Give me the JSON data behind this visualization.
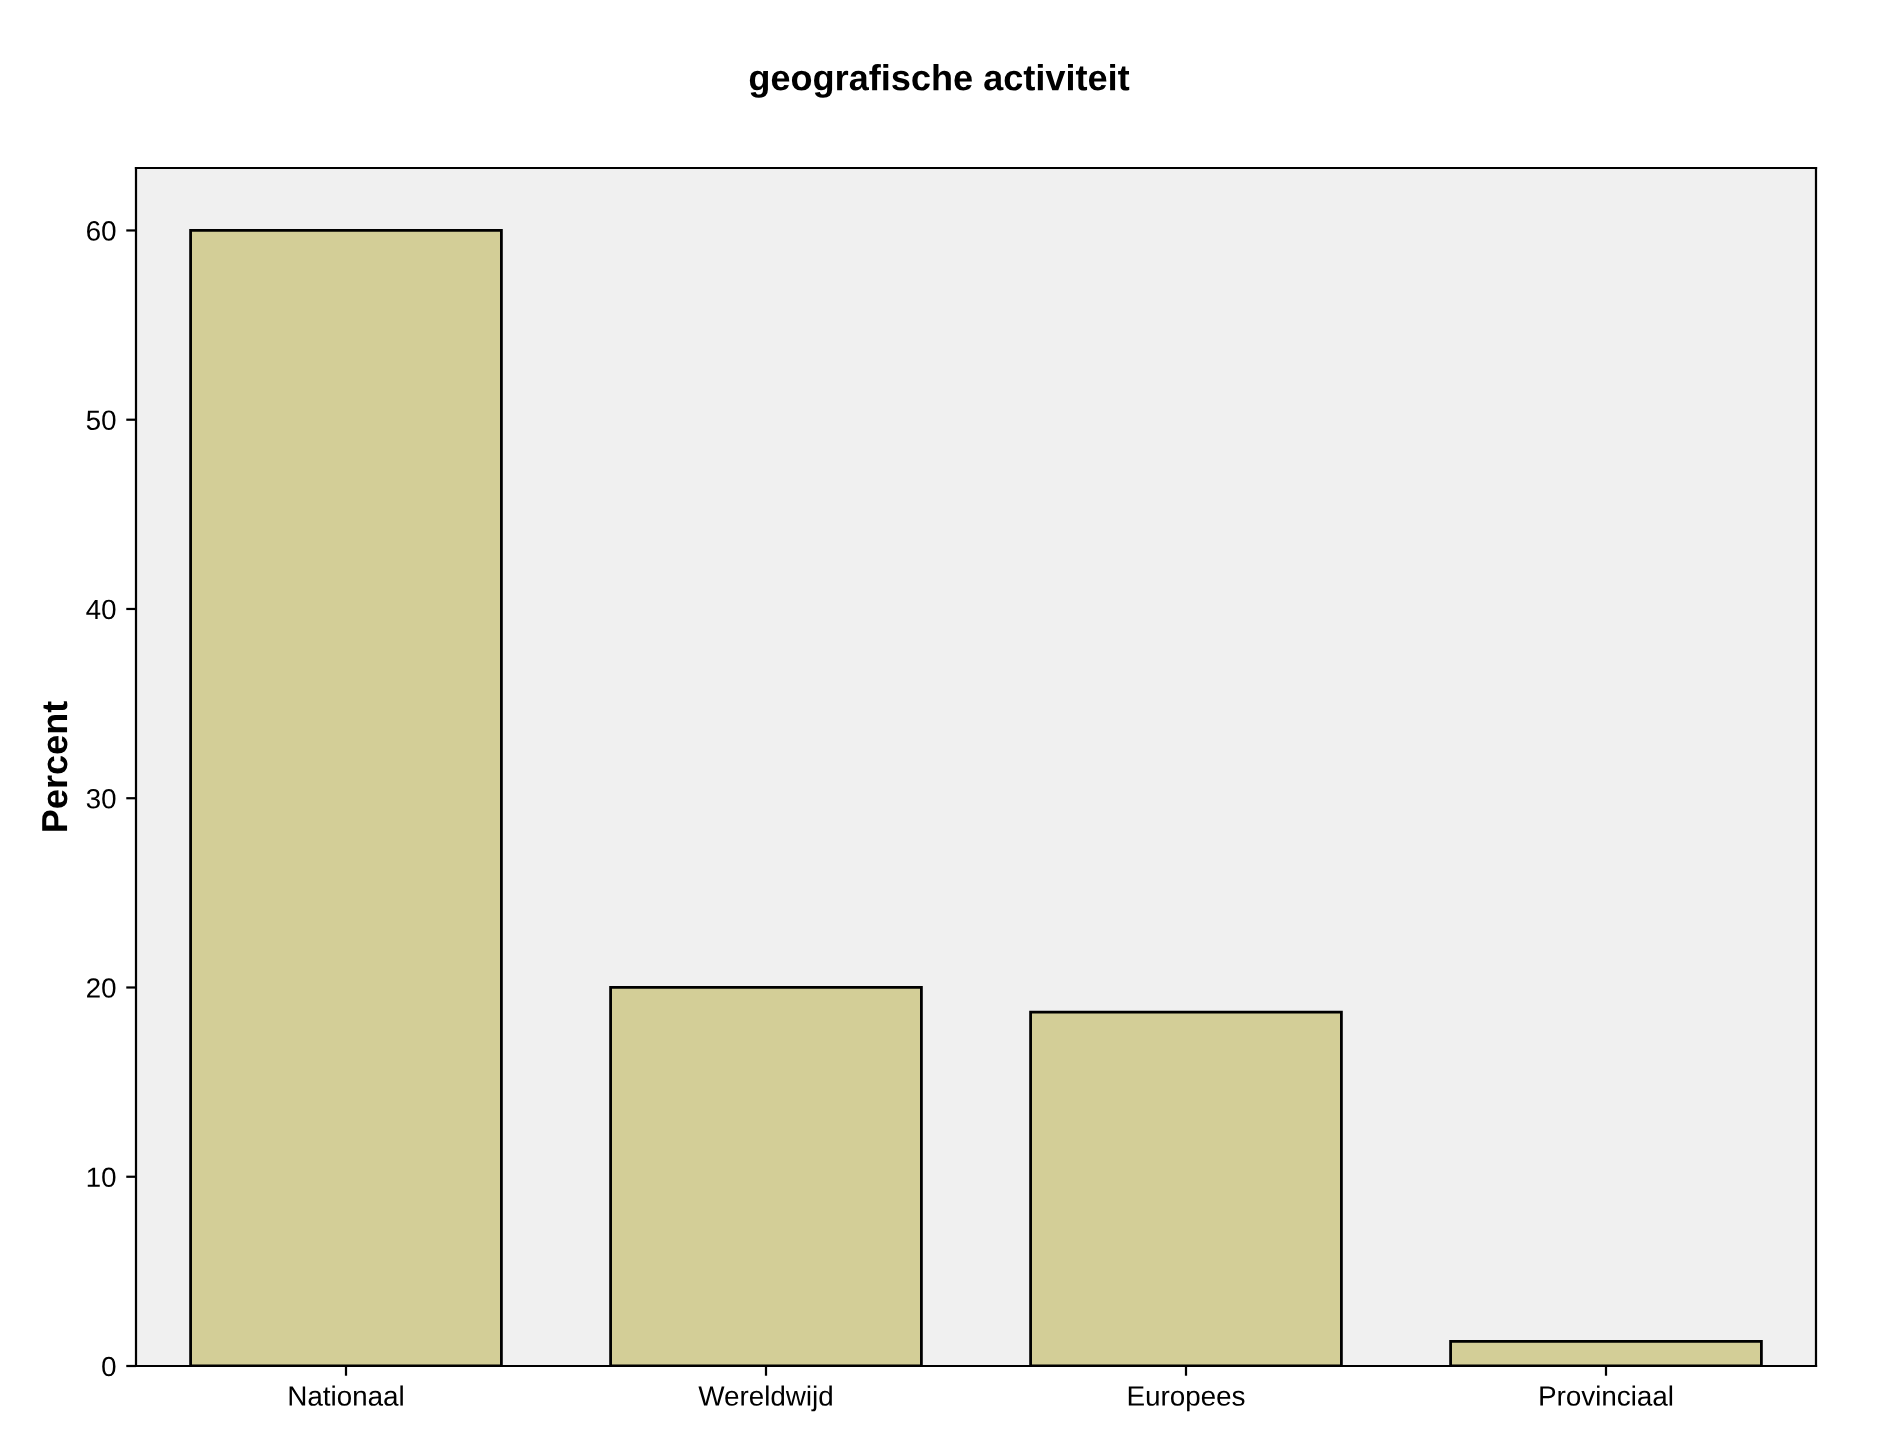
{
  "chart_data": {
    "type": "bar",
    "title": "geografische activiteit",
    "ylabel": "Percent",
    "categories": [
      "Nationaal",
      "Wereldwijd",
      "Europees",
      "Provinciaal"
    ],
    "values": [
      60,
      20,
      18.7,
      1.3
    ],
    "color": "#d3ce97",
    "ylim": [
      0,
      63.3
    ],
    "yticks": [
      0,
      10,
      20,
      30,
      40,
      50,
      60
    ],
    "grid": false
  }
}
